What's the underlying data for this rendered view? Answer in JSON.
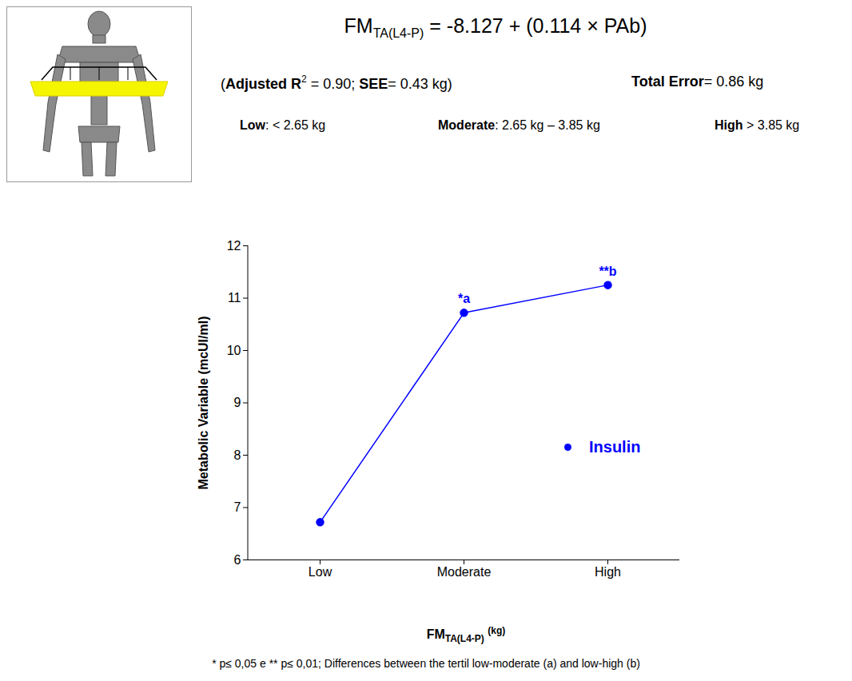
{
  "header": {
    "equation": {
      "lhs": "FM",
      "lhs_sub": "TA(L4-P)",
      "rhs": " = -8.127 + (0.114 × PAb)"
    },
    "fit": [
      {
        "text": "(",
        "bold": false
      },
      {
        "text": "Adjusted R",
        "bold": true
      },
      {
        "text": "2",
        "bold": false,
        "sup": true
      },
      {
        "text": " = 0.90; ",
        "bold": false
      },
      {
        "text": "SEE",
        "bold": true
      },
      {
        "text": "= 0.43 kg)",
        "bold": false
      }
    ],
    "total_error": {
      "label": "Total Error",
      "value": "= 0.86 kg"
    },
    "cutoffs": [
      {
        "label": "Low",
        "value": ": < 2.65 kg"
      },
      {
        "label": "Moderate",
        "value": ": 2.65 kg – 3.85 kg"
      },
      {
        "label": "High",
        "value": " > 3.85 kg"
      }
    ]
  },
  "chart_data": {
    "type": "line",
    "categories": [
      "Low",
      "Moderate",
      "High"
    ],
    "series": [
      {
        "name": "Insulin",
        "color": "#0000ff",
        "marker": "circle",
        "values": [
          6.72,
          10.72,
          11.25
        ]
      }
    ],
    "y_label": "Metabolic Variable (mcUI/ml)",
    "x_label": {
      "text": "FM",
      "sub": "TA(L4-P)",
      "suffix": "(kg)"
    },
    "ylim": [
      6,
      12
    ],
    "yticks": [
      6,
      7,
      8,
      9,
      10,
      11,
      12
    ],
    "legend": "right",
    "annotations": [
      {
        "category": "Moderate",
        "text": "*a"
      },
      {
        "category": "High",
        "text": "**b"
      }
    ],
    "footnote": "* p≤ 0,05 e ** p≤ 0,01; Differences between the tertil low-moderate (a) and low-high (b)"
  }
}
